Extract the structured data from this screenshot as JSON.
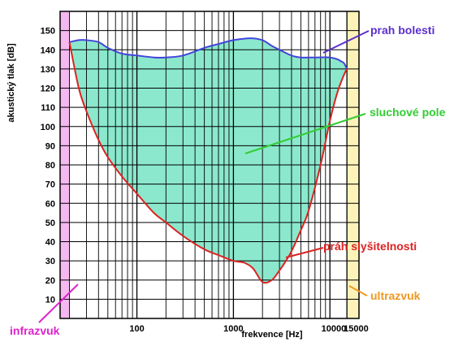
{
  "chart_data": {
    "type": "area",
    "title": "",
    "xlabel": "frekvence [Hz]",
    "ylabel": "akustický tlak [dB]",
    "x_scale": "log",
    "xlim": [
      16,
      20000
    ],
    "ylim": [
      0,
      160
    ],
    "x_tick_labels": [
      "100",
      "1000",
      "10000",
      "15000"
    ],
    "x_tick_values": [
      100,
      1000,
      10000,
      15000
    ],
    "y_ticks": [
      10,
      20,
      30,
      40,
      50,
      60,
      70,
      80,
      90,
      100,
      110,
      120,
      130,
      140,
      150
    ],
    "grid": true,
    "bands": [
      {
        "name": "infrazvuk",
        "x_from": 16,
        "x_to": 20,
        "color": "#f6b8f0"
      },
      {
        "name": "ultrazvuk",
        "x_from": 15000,
        "x_to": 20000,
        "color": "#fdf3b8"
      }
    ],
    "series": [
      {
        "name": "práh slyšitelnosti",
        "color": "#dd2222",
        "x": [
          20,
          25,
          30,
          40,
          50,
          70,
          100,
          150,
          200,
          300,
          500,
          700,
          1000,
          1300,
          1600,
          2000,
          2500,
          3000,
          3500,
          4000,
          5000,
          6000,
          8000,
          10000,
          12000,
          14000,
          15000
        ],
        "y": [
          144,
          120,
          108,
          93,
          84,
          74,
          65,
          55,
          50,
          43,
          36,
          33,
          30,
          29,
          26,
          19,
          20,
          25,
          30,
          35,
          46,
          56,
          80,
          103,
          118,
          127,
          130
        ]
      },
      {
        "name": "prah bolesti",
        "color": "#4444dd",
        "x": [
          20,
          25,
          30,
          40,
          50,
          70,
          100,
          150,
          200,
          300,
          500,
          700,
          1000,
          1500,
          2000,
          2500,
          3000,
          4000,
          5000,
          7000,
          10000,
          12000,
          13000,
          14000,
          15000
        ],
        "y": [
          144,
          145,
          145,
          144,
          141,
          138,
          137,
          136,
          136,
          137,
          141,
          143,
          145,
          146,
          145,
          142,
          140,
          137,
          136,
          136,
          136,
          135,
          134,
          133,
          130
        ]
      }
    ],
    "region": {
      "name": "sluchové pole",
      "color": "#8be8cc"
    },
    "annotations": [
      {
        "text": "prah bolesti",
        "color": "#5b2fd0"
      },
      {
        "text": "sluchové pole",
        "color": "#33cc33"
      },
      {
        "text": "práh slyšitelnosti",
        "color": "#dd2222"
      },
      {
        "text": "infrazvuk",
        "color": "#dd22cc"
      },
      {
        "text": "ultrazvuk",
        "color": "#ee9922"
      }
    ]
  }
}
